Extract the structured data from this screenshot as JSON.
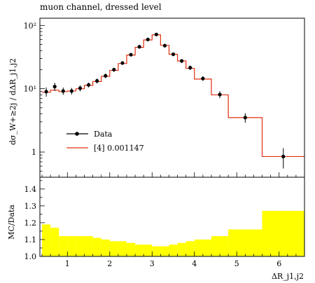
{
  "chart_data": {
    "type": "line",
    "title": "muon channel, dressed level",
    "xlabel": "ΔR_j1,j2",
    "ylabel": "dσ_W+≥2j / dΔR_j1,j2",
    "ratio_ylabel": "MC/Data",
    "x_range": [
      0.35,
      6.6
    ],
    "y_range": [
      0.4,
      130
    ],
    "y_scale": "log",
    "ratio_range": [
      1.0,
      1.47
    ],
    "x_ticks": [
      "1",
      "2",
      "3",
      "4",
      "5",
      "6"
    ],
    "y_ticks": [
      {
        "value": 1,
        "label": "1"
      },
      {
        "value": 10,
        "label": "10¹"
      },
      {
        "value": 100,
        "label": "10²"
      }
    ],
    "ratio_ticks": [
      "1.0",
      "1.1",
      "1.2",
      "1.3",
      "1.4"
    ],
    "legend_position": "lower-left",
    "data_series_name": "Data",
    "mc_series_name": "[4] 0.001147",
    "bins": [
      {
        "lo": 0.4,
        "hi": 0.6,
        "data": 9.0,
        "err": 1.5,
        "mc": 8.8,
        "ratio": 1.19
      },
      {
        "lo": 0.6,
        "hi": 0.8,
        "data": 10.8,
        "err": 1.6,
        "mc": 9.5,
        "ratio": 1.17
      },
      {
        "lo": 0.8,
        "hi": 1.0,
        "data": 9.2,
        "err": 1.2,
        "mc": 9.0,
        "ratio": 1.12
      },
      {
        "lo": 1.0,
        "hi": 1.2,
        "data": 9.2,
        "err": 1.1,
        "mc": 9.2,
        "ratio": 1.12
      },
      {
        "lo": 1.2,
        "hi": 1.4,
        "data": 10.2,
        "err": 1.1,
        "mc": 10.0,
        "ratio": 1.12
      },
      {
        "lo": 1.4,
        "hi": 1.6,
        "data": 11.5,
        "err": 1.0,
        "mc": 11.3,
        "ratio": 1.12
      },
      {
        "lo": 1.6,
        "hi": 1.8,
        "data": 13.3,
        "err": 1.2,
        "mc": 13.0,
        "ratio": 1.11
      },
      {
        "lo": 1.8,
        "hi": 2.0,
        "data": 16.0,
        "err": 1.3,
        "mc": 15.7,
        "ratio": 1.1
      },
      {
        "lo": 2.0,
        "hi": 2.2,
        "data": 20.0,
        "err": 1.4,
        "mc": 19.5,
        "ratio": 1.09
      },
      {
        "lo": 2.2,
        "hi": 2.4,
        "data": 25.5,
        "err": 1.7,
        "mc": 25.0,
        "ratio": 1.09
      },
      {
        "lo": 2.4,
        "hi": 2.6,
        "data": 34.5,
        "err": 2.2,
        "mc": 34.0,
        "ratio": 1.08
      },
      {
        "lo": 2.6,
        "hi": 2.8,
        "data": 46.0,
        "err": 2.8,
        "mc": 45.0,
        "ratio": 1.07
      },
      {
        "lo": 2.8,
        "hi": 3.0,
        "data": 60.0,
        "err": 3.5,
        "mc": 59.0,
        "ratio": 1.07
      },
      {
        "lo": 3.0,
        "hi": 3.2,
        "data": 72.0,
        "err": 4.0,
        "mc": 71.0,
        "ratio": 1.06
      },
      {
        "lo": 3.2,
        "hi": 3.4,
        "data": 48.0,
        "err": 3.0,
        "mc": 48.5,
        "ratio": 1.06
      },
      {
        "lo": 3.4,
        "hi": 3.6,
        "data": 35.0,
        "err": 2.3,
        "mc": 35.0,
        "ratio": 1.07
      },
      {
        "lo": 3.6,
        "hi": 3.8,
        "data": 27.5,
        "err": 2.0,
        "mc": 27.5,
        "ratio": 1.08
      },
      {
        "lo": 3.8,
        "hi": 4.0,
        "data": 21.5,
        "err": 1.7,
        "mc": 21.0,
        "ratio": 1.09
      },
      {
        "lo": 4.0,
        "hi": 4.4,
        "data": 14.5,
        "err": 1.2,
        "mc": 14.2,
        "ratio": 1.1
      },
      {
        "lo": 4.4,
        "hi": 4.8,
        "data": 8.1,
        "err": 1.0,
        "mc": 8.0,
        "ratio": 1.12
      },
      {
        "lo": 4.8,
        "hi": 5.6,
        "data": 3.5,
        "err": 0.6,
        "mc": 3.5,
        "ratio": 1.16
      },
      {
        "lo": 5.6,
        "hi": 6.6,
        "data": 0.85,
        "err": 0.3,
        "mc": 0.85,
        "ratio": 1.27
      }
    ]
  },
  "colors": {
    "mc_line": "#e03010",
    "band": "#ffff00",
    "data_marker": "#000000"
  }
}
